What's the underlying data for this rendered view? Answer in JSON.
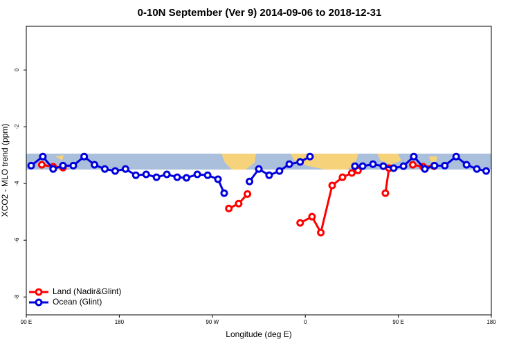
{
  "chart_data": {
    "type": "line",
    "title": "0-10N September (Ver 9)   2014-09-06 to 2018-12-31",
    "x_label": "Longitude (deg E)",
    "y_label": "XCO2 - MLO trend (ppm)",
    "xlim": [
      90,
      540
    ],
    "xticks": [
      {
        "value": 90,
        "label": "90 E"
      },
      {
        "value": 180,
        "label": "180"
      },
      {
        "value": 270,
        "label": "90 W"
      },
      {
        "value": 360,
        "label": "0"
      },
      {
        "value": 450,
        "label": "90 E"
      },
      {
        "value": 540,
        "label": "180"
      }
    ],
    "ylim": [
      -8.63,
      1.54
    ],
    "yticks": [
      0,
      -2,
      -4,
      -6,
      -8
    ],
    "legend": "bottomleft",
    "series": [
      {
        "name": "Land (Nadir&Glint)",
        "color": "#ff0000",
        "x": [
          105,
          116,
          125.5,
          null,
          286,
          295.5,
          304,
          null,
          355,
          366.5,
          375,
          386,
          396,
          405,
          411,
          null,
          437.5,
          441,
          null,
          464,
          474,
          484.5
        ],
        "values": [
          -3.34,
          -3.41,
          -3.44,
          null,
          -4.88,
          -4.71,
          -4.37,
          null,
          -5.39,
          -5.17,
          -5.73,
          -4.07,
          -3.78,
          -3.63,
          -3.54,
          null,
          -4.34,
          -3.46,
          null,
          -3.34,
          -3.41,
          -3.39
        ]
      },
      {
        "name": "Ocean (Glint)",
        "color": "#0000dd",
        "x": [
          94.7,
          106,
          116,
          125.5,
          135.5,
          146,
          156,
          166,
          176,
          186,
          196,
          206,
          216,
          226,
          236,
          245,
          255.5,
          265.5,
          275.5,
          281.5,
          null,
          306,
          315,
          325,
          335,
          344.5,
          355,
          364.5,
          null,
          408,
          415.5,
          425.5,
          435.5,
          445.5,
          455,
          465,
          475.7,
          485,
          495,
          506,
          516,
          526,
          535
        ],
        "values": [
          -3.37,
          -3.05,
          -3.49,
          -3.37,
          -3.37,
          -3.05,
          -3.34,
          -3.49,
          -3.56,
          -3.49,
          -3.71,
          -3.68,
          -3.78,
          -3.68,
          -3.78,
          -3.8,
          -3.68,
          -3.71,
          -3.85,
          -4.34,
          null,
          -3.93,
          -3.49,
          -3.71,
          -3.56,
          -3.32,
          -3.24,
          -3.05,
          null,
          -3.39,
          -3.39,
          -3.32,
          -3.39,
          -3.46,
          -3.39,
          -3.05,
          -3.49,
          -3.37,
          -3.37,
          -3.05,
          -3.34,
          -3.49,
          -3.56
        ]
      }
    ]
  }
}
